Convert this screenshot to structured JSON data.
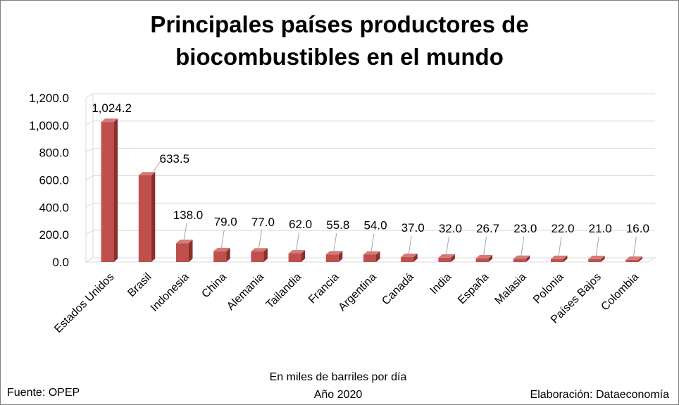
{
  "chart_data": {
    "type": "bar",
    "title_line1": "Principales países productores de",
    "title_line2": "biocombustibles en el mundo",
    "xlabel_line1": "En miles de barriles por día",
    "xlabel_line2": "Año 2020",
    "source": "Fuente: OPEP",
    "credit": "Elaboración: Dataeconomía",
    "categories": [
      "Estados Unidos",
      "Brasil",
      "Indonesia",
      "China",
      "Alemania",
      "Tailandia",
      "Francia",
      "Argentina",
      "Canadá",
      "India",
      "España",
      "Malasia",
      "Polonia",
      "Países Bajos",
      "Colombia"
    ],
    "values": [
      1024.2,
      633.5,
      138.0,
      79.0,
      77.0,
      62.0,
      55.8,
      54.0,
      37.0,
      32.0,
      26.7,
      23.0,
      22.0,
      21.0,
      16.0
    ],
    "value_labels": [
      "1,024.2",
      "633.5",
      "138.0",
      "79.0",
      "77.0",
      "62.0",
      "55.8",
      "54.0",
      "37.0",
      "32.0",
      "26.7",
      "23.0",
      "22.0",
      "21.0",
      "16.0"
    ],
    "yticks": [
      0,
      200,
      400,
      600,
      800,
      1000,
      1200
    ],
    "ytick_labels": [
      "0.0",
      "200.0",
      "400.0",
      "600.0",
      "800.0",
      "1,000.0",
      "1,200.0"
    ],
    "ylim": [
      0,
      1200
    ],
    "grid": true,
    "legend": "none",
    "bar_color": "#c0504d",
    "bar_color_dark": "#8c2f2c"
  }
}
